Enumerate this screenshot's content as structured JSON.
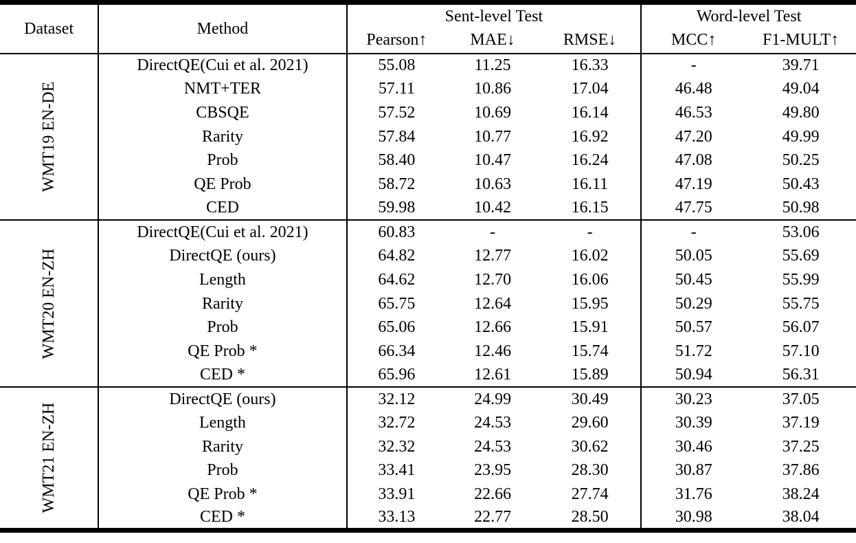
{
  "colors": {
    "text": "#000000",
    "background": "#ffffff",
    "rule": "#000000"
  },
  "table": {
    "header": {
      "dataset": "Dataset",
      "method": "Method",
      "sent_group": "Sent-level Test",
      "word_group": "Word-level Test",
      "sub": [
        "Pearson↑",
        "MAE↓",
        "RMSE↓",
        "MCC↑",
        "F1-MULT↑"
      ]
    },
    "sections": [
      {
        "dataset": "WMT19 EN-DE",
        "rows": [
          {
            "method": "DirectQE(Cui et al. 2021)",
            "values": [
              "55.08",
              "11.25",
              "16.33",
              "-",
              "39.71"
            ],
            "bold": [
              false,
              false,
              false,
              false,
              false
            ]
          },
          {
            "method": "NMT+TER",
            "values": [
              "57.11",
              "10.86",
              "17.04",
              "46.48",
              "49.04"
            ],
            "bold": [
              false,
              false,
              false,
              false,
              false
            ]
          },
          {
            "method": "CBSQE",
            "values": [
              "57.52",
              "10.69",
              "16.14",
              "46.53",
              "49.80"
            ],
            "bold": [
              false,
              false,
              false,
              false,
              false
            ]
          },
          {
            "method": "Rarity",
            "values": [
              "57.84",
              "10.77",
              "16.92",
              "47.20",
              "49.99"
            ],
            "bold": [
              false,
              false,
              false,
              false,
              false
            ]
          },
          {
            "method": "Prob",
            "values": [
              "58.40",
              "10.47",
              "16.24",
              "47.08",
              "50.25"
            ],
            "bold": [
              false,
              false,
              false,
              false,
              false
            ]
          },
          {
            "method": "QE Prob",
            "values": [
              "58.72",
              "10.63",
              "16.11",
              "47.19",
              "50.43"
            ],
            "bold": [
              false,
              false,
              true,
              false,
              false
            ]
          },
          {
            "method": "CED",
            "values": [
              "59.98",
              "10.42",
              "16.15",
              "47.75",
              "50.98"
            ],
            "bold": [
              true,
              true,
              false,
              true,
              true
            ]
          }
        ]
      },
      {
        "dataset": "WMT20 EN-ZH",
        "rows": [
          {
            "method": "DirectQE(Cui et al. 2021)",
            "values": [
              "60.83",
              "-",
              "-",
              "-",
              "53.06"
            ],
            "bold": [
              false,
              false,
              false,
              false,
              false
            ]
          },
          {
            "method": "DirectQE (ours)",
            "values": [
              "64.82",
              "12.77",
              "16.02",
              "50.05",
              "55.69"
            ],
            "bold": [
              false,
              false,
              false,
              false,
              false
            ]
          },
          {
            "method": "Length",
            "values": [
              "64.62",
              "12.70",
              "16.06",
              "50.45",
              "55.99"
            ],
            "bold": [
              false,
              false,
              false,
              false,
              false
            ]
          },
          {
            "method": "Rarity",
            "values": [
              "65.75",
              "12.64",
              "15.95",
              "50.29",
              "55.75"
            ],
            "bold": [
              false,
              false,
              false,
              false,
              false
            ]
          },
          {
            "method": "Prob",
            "values": [
              "65.06",
              "12.66",
              "15.91",
              "50.57",
              "56.07"
            ],
            "bold": [
              false,
              false,
              false,
              false,
              false
            ]
          },
          {
            "method": "QE Prob *",
            "values": [
              "66.34",
              "12.46",
              "15.74",
              "51.72",
              "57.10"
            ],
            "bold": [
              true,
              true,
              true,
              true,
              true
            ]
          },
          {
            "method": "CED *",
            "values": [
              "65.96",
              "12.61",
              "15.89",
              "50.94",
              "56.31"
            ],
            "bold": [
              false,
              false,
              false,
              false,
              false
            ]
          }
        ]
      },
      {
        "dataset": "WMT21 EN-ZH",
        "rows": [
          {
            "method": "DirectQE (ours)",
            "values": [
              "32.12",
              "24.99",
              "30.49",
              "30.23",
              "37.05"
            ],
            "bold": [
              false,
              false,
              false,
              false,
              false
            ]
          },
          {
            "method": "Length",
            "values": [
              "32.72",
              "24.53",
              "29.60",
              "30.39",
              "37.19"
            ],
            "bold": [
              false,
              false,
              false,
              false,
              false
            ]
          },
          {
            "method": "Rarity",
            "values": [
              "32.32",
              "24.53",
              "30.62",
              "30.46",
              "37.25"
            ],
            "bold": [
              false,
              false,
              false,
              false,
              false
            ]
          },
          {
            "method": "Prob",
            "values": [
              "33.41",
              "23.95",
              "28.30",
              "30.87",
              "37.86"
            ],
            "bold": [
              false,
              false,
              false,
              false,
              false
            ]
          },
          {
            "method": "QE Prob *",
            "values": [
              "33.91",
              "22.66",
              "27.74",
              "31.76",
              "38.24"
            ],
            "bold": [
              true,
              true,
              true,
              true,
              true
            ]
          },
          {
            "method": "CED *",
            "values": [
              "33.13",
              "22.77",
              "28.50",
              "30.98",
              "38.04"
            ],
            "bold": [
              false,
              false,
              false,
              false,
              false
            ]
          }
        ]
      }
    ]
  }
}
